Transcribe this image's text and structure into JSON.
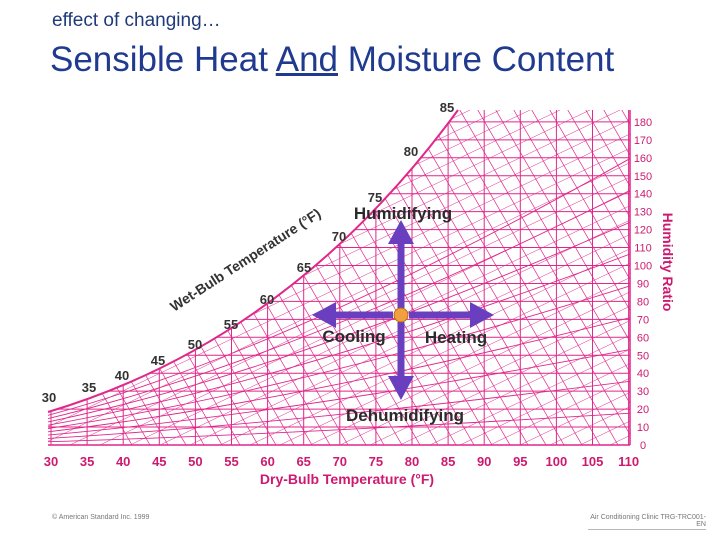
{
  "header": {
    "subtitle": "effect of changing…",
    "title_part1": "Sensible Heat ",
    "title_underlined": "And",
    "title_part2": " Moisture Content"
  },
  "chart": {
    "dry_bulb_ticks": [
      "30",
      "35",
      "40",
      "45",
      "50",
      "55",
      "60",
      "65",
      "70",
      "75",
      "80",
      "85",
      "90",
      "95",
      "100",
      "105",
      "110"
    ],
    "humidity_ticks": [
      "0",
      "10",
      "20",
      "30",
      "40",
      "50",
      "60",
      "70",
      "80",
      "90",
      "100",
      "110",
      "120",
      "130",
      "140",
      "150",
      "160",
      "170",
      "180"
    ],
    "wet_bulb_ticks": [
      "30",
      "35",
      "40",
      "45",
      "50",
      "55",
      "60",
      "65",
      "70",
      "75",
      "80",
      "85"
    ],
    "x_axis_label": "Dry-Bulb Temperature (°F)",
    "y_axis_label": "Humidity Ratio",
    "wet_bulb_label": "Wet-Bulb Temperature (°F)",
    "arrows": {
      "up": "Humidifying",
      "down": "Dehumidifying",
      "left": "Cooling",
      "right": "Heating"
    },
    "colors": {
      "grid": "#e0278a",
      "tick_text": "#cc1a70",
      "arrow": "#6a3fbf",
      "arrow_text": "#2b2b2b",
      "center_dot": "#f0a040"
    }
  },
  "footer": {
    "left": "© American Standard Inc. 1999",
    "right": "Air Conditioning Clinic TRG-TRC001-EN"
  }
}
